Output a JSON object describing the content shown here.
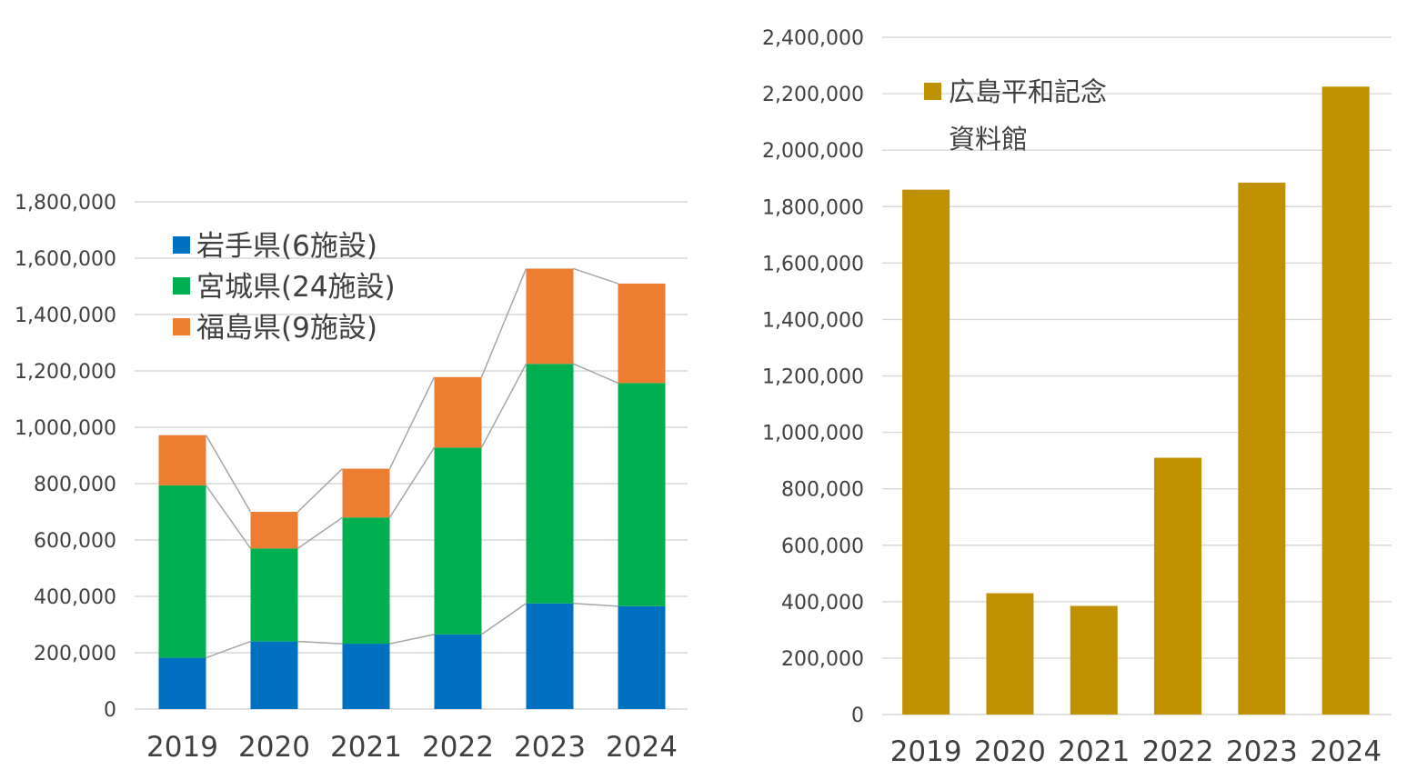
{
  "chart_data": [
    {
      "type": "bar",
      "stacked": true,
      "title": "",
      "xlabel": "",
      "ylabel": "",
      "categories": [
        "2019",
        "2020",
        "2021",
        "2022",
        "2023",
        "2024"
      ],
      "ylim": [
        0,
        1800000
      ],
      "yticks": [
        "0",
        "200,000",
        "400,000",
        "600,000",
        "800,000",
        "1,000,000",
        "1,200,000",
        "1,400,000",
        "1,600,000",
        "1,800,000"
      ],
      "grid": true,
      "legend_position": "top-left",
      "series_lines": true,
      "series": [
        {
          "name": "岩手県(6施設)",
          "color": "#0070c0",
          "values": [
            182000,
            240000,
            232000,
            265000,
            375000,
            365000
          ]
        },
        {
          "name": "宮城県(24施設)",
          "color": "#00b050",
          "values": [
            612000,
            330000,
            448000,
            663000,
            850000,
            792000
          ]
        },
        {
          "name": "福島県(9施設)",
          "color": "#ed7d31",
          "values": [
            178000,
            130000,
            173000,
            250000,
            338000,
            353000
          ]
        }
      ]
    },
    {
      "type": "bar",
      "title": "",
      "xlabel": "",
      "ylabel": "",
      "categories": [
        "2019",
        "2020",
        "2021",
        "2022",
        "2023",
        "2024"
      ],
      "ylim": [
        0,
        2400000
      ],
      "yticks": [
        "0",
        "200,000",
        "400,000",
        "600,000",
        "800,000",
        "1,000,000",
        "1,200,000",
        "1,400,000",
        "1,600,000",
        "1,800,000",
        "2,000,000",
        "2,200,000",
        "2,400,000"
      ],
      "grid": true,
      "legend_position": "top-left",
      "series": [
        {
          "name_lines": [
            "広島平和記念",
            "資料館"
          ],
          "color": "#bf9000",
          "values": [
            1860000,
            430000,
            385000,
            910000,
            1885000,
            2225000
          ]
        }
      ]
    }
  ]
}
